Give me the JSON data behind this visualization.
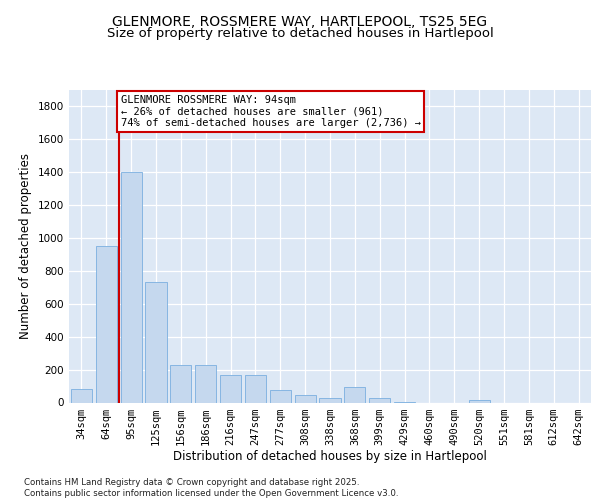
{
  "title1": "GLENMORE, ROSSMERE WAY, HARTLEPOOL, TS25 5EG",
  "title2": "Size of property relative to detached houses in Hartlepool",
  "xlabel": "Distribution of detached houses by size in Hartlepool",
  "ylabel": "Number of detached properties",
  "categories": [
    "34sqm",
    "64sqm",
    "95sqm",
    "125sqm",
    "156sqm",
    "186sqm",
    "216sqm",
    "247sqm",
    "277sqm",
    "308sqm",
    "338sqm",
    "368sqm",
    "399sqm",
    "429sqm",
    "460sqm",
    "490sqm",
    "520sqm",
    "551sqm",
    "581sqm",
    "612sqm",
    "642sqm"
  ],
  "values": [
    80,
    950,
    1400,
    730,
    230,
    230,
    165,
    165,
    75,
    45,
    25,
    95,
    30,
    5,
    0,
    0,
    18,
    0,
    0,
    0,
    0
  ],
  "bar_color": "#c5d8ee",
  "bar_edge_color": "#7aafe0",
  "vline_color": "#cc0000",
  "annotation_text": "GLENMORE ROSSMERE WAY: 94sqm\n← 26% of detached houses are smaller (961)\n74% of semi-detached houses are larger (2,736) →",
  "annotation_box_color": "#cc0000",
  "ylim": [
    0,
    1900
  ],
  "yticks": [
    0,
    200,
    400,
    600,
    800,
    1000,
    1200,
    1400,
    1600,
    1800
  ],
  "background_color": "#dde8f5",
  "grid_color": "#ffffff",
  "footer_text": "Contains HM Land Registry data © Crown copyright and database right 2025.\nContains public sector information licensed under the Open Government Licence v3.0.",
  "title_fontsize": 10,
  "subtitle_fontsize": 9.5,
  "tick_fontsize": 7.5,
  "label_fontsize": 8.5,
  "ylabel_fontsize": 8.5
}
